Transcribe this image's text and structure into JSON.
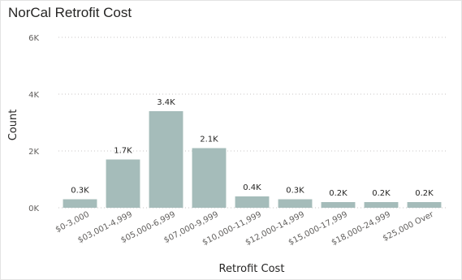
{
  "chart_data": {
    "type": "bar",
    "title": "NorCal Retrofit Cost",
    "xlabel": "Retrofit Cost",
    "ylabel": "Count",
    "categories": [
      "$0-3,000",
      "$03,001-4,999",
      "$05,000-6,999",
      "$07,000-9,999",
      "$10,000-11,999",
      "$12,000-14,999",
      "$15,000-17,999",
      "$18,000-24,999",
      "$25,000 Over"
    ],
    "values": [
      300,
      1700,
      3400,
      2100,
      400,
      300,
      200,
      200,
      200
    ],
    "data_labels": [
      "0.3K",
      "1.7K",
      "3.4K",
      "2.1K",
      "0.4K",
      "0.3K",
      "0.2K",
      "0.2K",
      "0.2K"
    ],
    "ylim": [
      0,
      6000
    ],
    "yticks": [
      0,
      2000,
      4000,
      6000
    ],
    "ytick_labels": [
      "0K",
      "2K",
      "4K",
      "6K"
    ],
    "grid": true,
    "bar_color": "#a5bcba"
  }
}
